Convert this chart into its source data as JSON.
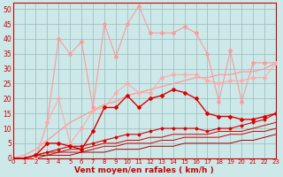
{
  "title": "",
  "xlabel": "Vent moyen/en rafales ( km/h )",
  "xlim": [
    0,
    23
  ],
  "ylim": [
    0,
    52
  ],
  "yticks": [
    0,
    5,
    10,
    15,
    20,
    25,
    30,
    35,
    40,
    45,
    50
  ],
  "xticks": [
    0,
    1,
    2,
    3,
    4,
    5,
    6,
    7,
    8,
    9,
    10,
    11,
    12,
    13,
    14,
    15,
    16,
    17,
    18,
    19,
    20,
    21,
    22,
    23
  ],
  "bg_color": "#cce8e8",
  "grid_color": "#99bbbb",
  "series": [
    {
      "x": [
        0,
        1,
        2,
        3,
        4,
        5,
        6,
        7,
        8,
        9,
        10,
        11,
        12,
        13,
        14,
        15,
        16,
        17,
        18,
        19,
        20,
        21,
        22,
        23
      ],
      "y": [
        0,
        0,
        0,
        12,
        40,
        35,
        39,
        17,
        45,
        34,
        45,
        51,
        42,
        42,
        42,
        44,
        42,
        35,
        19,
        36,
        19,
        32,
        32,
        32
      ],
      "color": "#ff9999",
      "lw": 0.8,
      "marker": "D",
      "ms": 2.0
    },
    {
      "x": [
        0,
        1,
        2,
        3,
        4,
        5,
        6,
        7,
        8,
        9,
        10,
        11,
        12,
        13,
        14,
        15,
        16,
        17,
        18,
        19,
        20,
        21,
        22,
        23
      ],
      "y": [
        0,
        1,
        3,
        6,
        9,
        12,
        14,
        16,
        18,
        19,
        21,
        22,
        23,
        24,
        25,
        26,
        27,
        27,
        28,
        28,
        29,
        29,
        30,
        32
      ],
      "color": "#ff9999",
      "lw": 0.9,
      "marker": null,
      "ms": 0
    },
    {
      "x": [
        0,
        1,
        2,
        3,
        4,
        5,
        6,
        7,
        8,
        9,
        10,
        11,
        12,
        13,
        14,
        15,
        16,
        17,
        18,
        19,
        20,
        21,
        22,
        23
      ],
      "y": [
        0,
        0,
        0,
        12,
        20,
        5,
        10,
        16,
        17,
        22,
        25,
        22,
        22,
        27,
        28,
        28,
        28,
        26,
        25,
        26,
        26,
        27,
        27,
        32
      ],
      "color": "#ffaaaa",
      "lw": 0.8,
      "marker": "D",
      "ms": 2.0
    },
    {
      "x": [
        0,
        1,
        2,
        3,
        4,
        5,
        6,
        7,
        8,
        9,
        10,
        11,
        12,
        13,
        14,
        15,
        16,
        17,
        18,
        19,
        20,
        21,
        22,
        23
      ],
      "y": [
        0,
        0,
        1,
        5,
        5,
        4,
        3,
        9,
        17,
        17,
        21,
        17,
        20,
        21,
        23,
        22,
        20,
        15,
        14,
        14,
        13,
        13,
        14,
        15
      ],
      "color": "#dd0000",
      "lw": 1.0,
      "marker": "D",
      "ms": 2.0
    },
    {
      "x": [
        0,
        1,
        2,
        3,
        4,
        5,
        6,
        7,
        8,
        9,
        10,
        11,
        12,
        13,
        14,
        15,
        16,
        17,
        18,
        19,
        20,
        21,
        22,
        23
      ],
      "y": [
        0,
        0,
        1,
        2,
        3,
        4,
        4,
        5,
        6,
        7,
        8,
        8,
        9,
        10,
        10,
        10,
        10,
        9,
        10,
        10,
        11,
        12,
        13,
        15
      ],
      "color": "#dd0000",
      "lw": 0.8,
      "marker": "D",
      "ms": 1.5
    },
    {
      "x": [
        0,
        1,
        2,
        3,
        4,
        5,
        6,
        7,
        8,
        9,
        10,
        11,
        12,
        13,
        14,
        15,
        16,
        17,
        18,
        19,
        20,
        21,
        22,
        23
      ],
      "y": [
        0,
        0,
        1,
        2,
        2,
        3,
        3,
        4,
        5,
        5,
        6,
        6,
        7,
        7,
        8,
        8,
        8,
        8,
        9,
        9,
        9,
        10,
        11,
        12
      ],
      "color": "#cc0000",
      "lw": 0.7,
      "marker": null,
      "ms": 0
    },
    {
      "x": [
        0,
        1,
        2,
        3,
        4,
        5,
        6,
        7,
        8,
        9,
        10,
        11,
        12,
        13,
        14,
        15,
        16,
        17,
        18,
        19,
        20,
        21,
        22,
        23
      ],
      "y": [
        0,
        0,
        1,
        1,
        2,
        2,
        2,
        3,
        4,
        4,
        5,
        5,
        5,
        6,
        6,
        7,
        7,
        7,
        7,
        8,
        8,
        9,
        9,
        10
      ],
      "color": "#cc0000",
      "lw": 0.7,
      "marker": null,
      "ms": 0
    },
    {
      "x": [
        0,
        1,
        2,
        3,
        4,
        5,
        6,
        7,
        8,
        9,
        10,
        11,
        12,
        13,
        14,
        15,
        16,
        17,
        18,
        19,
        20,
        21,
        22,
        23
      ],
      "y": [
        0,
        0,
        0,
        1,
        1,
        1,
        2,
        2,
        2,
        3,
        3,
        3,
        4,
        4,
        4,
        5,
        5,
        5,
        5,
        5,
        6,
        6,
        7,
        8
      ],
      "color": "#aa0000",
      "lw": 0.7,
      "marker": null,
      "ms": 0
    }
  ]
}
